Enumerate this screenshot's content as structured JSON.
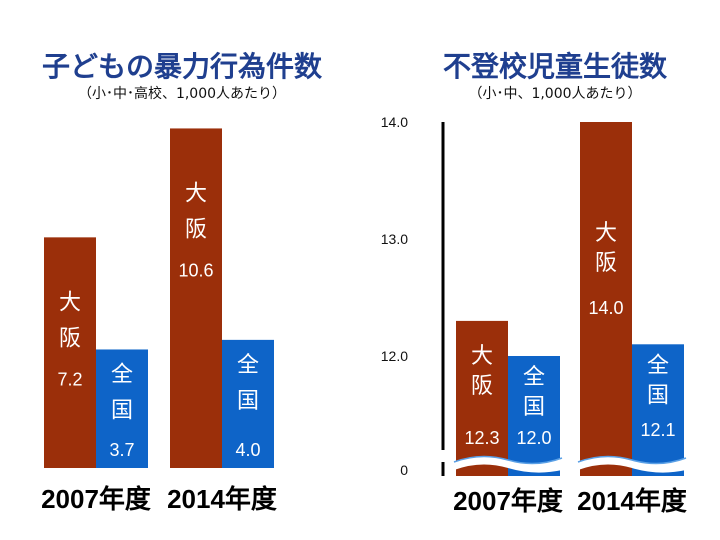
{
  "colors": {
    "osaka": "#9b2f0a",
    "national": "#0e64c8",
    "title": "#1f3f8f",
    "gap": "#5aa0e6"
  },
  "left_chart": {
    "title": "子どもの暴力行為件数",
    "subtitle": "（小･中･高校、1,000人あたり）"
  },
  "right_chart": {
    "title": "不登校児童生徒数",
    "subtitle": "（小･中、1,000人あたり）"
  },
  "chart_data": [
    {
      "type": "bar",
      "title": "子どもの暴力行為件数",
      "subtitle": "（小･中･高校、1,000人あたり）",
      "categories": [
        "2007年度",
        "2014年度"
      ],
      "series": [
        {
          "name_lines": [
            "大",
            "阪"
          ],
          "values": [
            7.2,
            10.6
          ]
        },
        {
          "name_lines": [
            "全",
            "国"
          ],
          "values": [
            3.7,
            4.0
          ]
        }
      ],
      "value_labels": [
        [
          "7.2",
          "3.7"
        ],
        [
          "10.6",
          "4.0"
        ]
      ],
      "ylim": [
        0,
        11.8
      ],
      "axis": false,
      "grid": false
    },
    {
      "type": "bar",
      "title": "不登校児童生徒数",
      "subtitle": "（小･中、1,000人あたり）",
      "categories": [
        "2007年度",
        "2014年度"
      ],
      "series": [
        {
          "name_lines": [
            "大",
            "阪"
          ],
          "values": [
            12.3,
            14.0
          ]
        },
        {
          "name_lines": [
            "全",
            "国"
          ],
          "values": [
            12.0,
            12.1
          ]
        }
      ],
      "value_labels": [
        [
          "12.3",
          "12.0"
        ],
        [
          "14.0",
          "12.1"
        ]
      ],
      "yticks": [
        "0",
        "12.0",
        "13.0",
        "14.0"
      ],
      "axis_break": true,
      "ylim_broken": [
        11.0,
        14.0
      ],
      "grid": false
    }
  ]
}
